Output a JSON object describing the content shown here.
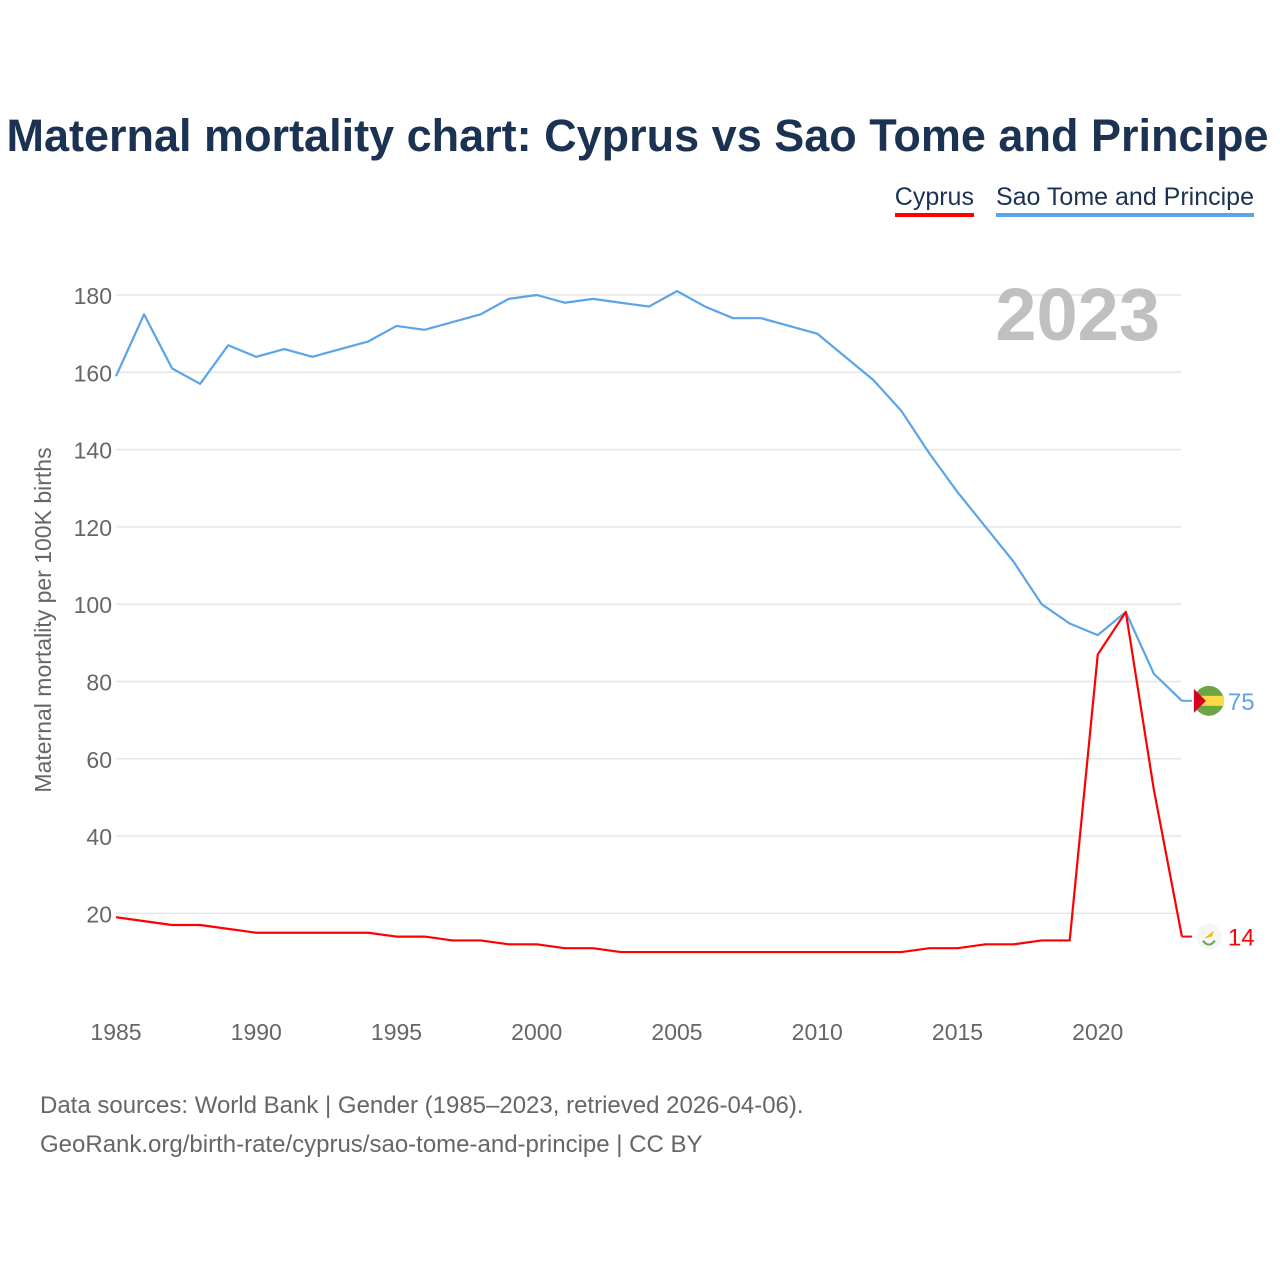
{
  "chart_data": {
    "type": "line",
    "title": "Maternal mortality chart: Cyprus vs Sao Tome and Principe",
    "xlabel": "",
    "ylabel": "Maternal mortality per 100K births",
    "xlim": [
      1985,
      2023
    ],
    "ylim": [
      0,
      190
    ],
    "grid": true,
    "x_ticks": [
      1985,
      1990,
      1995,
      2000,
      2005,
      2010,
      2015,
      2020
    ],
    "y_ticks": [
      20,
      40,
      60,
      80,
      100,
      120,
      140,
      160,
      180
    ],
    "year_label": "2023",
    "legend_position": "top-right",
    "x": [
      1985,
      1986,
      1987,
      1988,
      1989,
      1990,
      1991,
      1992,
      1993,
      1994,
      1995,
      1996,
      1997,
      1998,
      1999,
      2000,
      2001,
      2002,
      2003,
      2004,
      2005,
      2006,
      2007,
      2008,
      2009,
      2010,
      2011,
      2012,
      2013,
      2014,
      2015,
      2016,
      2017,
      2018,
      2019,
      2020,
      2021,
      2022,
      2023
    ],
    "series": [
      {
        "name": "Cyprus",
        "color": "#ff0000",
        "end_label": "14",
        "values": [
          19,
          18,
          17,
          17,
          16,
          15,
          15,
          15,
          15,
          15,
          14,
          14,
          13,
          13,
          12,
          12,
          11,
          11,
          10,
          10,
          10,
          10,
          10,
          10,
          10,
          10,
          10,
          10,
          10,
          11,
          11,
          12,
          12,
          13,
          13,
          87,
          98,
          52,
          14
        ]
      },
      {
        "name": "Sao Tome and Principe",
        "color": "#5ba4e8",
        "end_label": "75",
        "values": [
          159,
          175,
          161,
          157,
          167,
          164,
          166,
          164,
          166,
          168,
          172,
          171,
          173,
          175,
          179,
          180,
          178,
          179,
          178,
          177,
          181,
          177,
          174,
          174,
          172,
          170,
          164,
          158,
          150,
          139,
          129,
          120,
          111,
          100,
          95,
          92,
          98,
          82,
          75
        ]
      }
    ]
  },
  "footer": {
    "line1": "Data sources: World Bank | Gender (1985–2023, retrieved 2026-04-06).",
    "line2": "GeoRank.org/birth-rate/cyprus/sao-tome-and-principe | CC BY"
  }
}
